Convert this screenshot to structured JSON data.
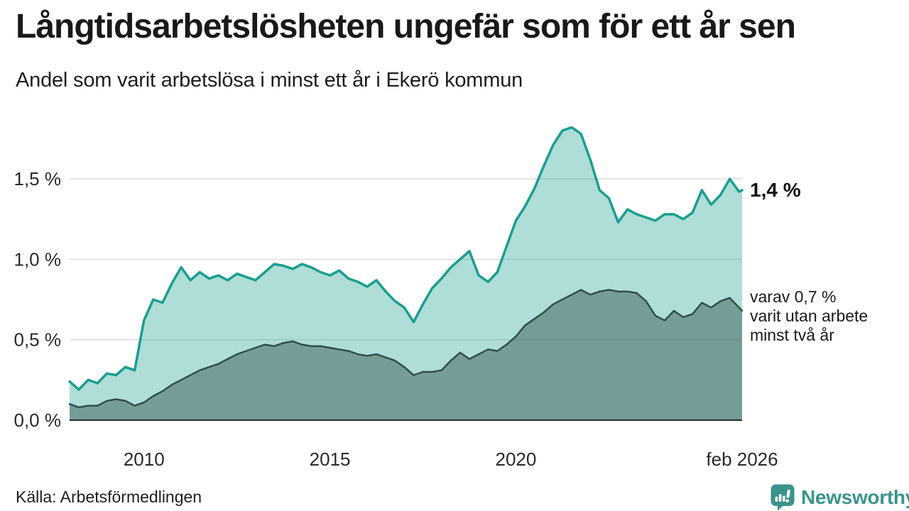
{
  "header": {
    "title": "Långtidsarbetslösheten ungefär som för ett år sen",
    "subtitle": "Andel som varit arbetslösa i minst ett år i Ekerö kommun"
  },
  "footer": {
    "source": "Källa: Arbetsförmedlingen",
    "logo_text": "Newsworthy"
  },
  "colors": {
    "series1_line": "#1b9e8f",
    "series1_fill": "rgba(27,158,143,0.35)",
    "series2_line": "#2e4f4a",
    "series2_fill": "rgba(46,79,74,0.45)",
    "gridline": "#dcdcdc",
    "axis": "#2b2b2b",
    "tick_text": "#2a2a2a",
    "logo": "#3b948b"
  },
  "chart_data": {
    "type": "area",
    "title": "Långtidsarbetslösheten ungefär som för ett år sen",
    "subtitle": "Andel som varit arbetslösa i minst ett år i Ekerö kommun",
    "x_unit": "decimal year, monthly series Jan 2008 – Feb 2026 (values read off chart, quarterly resolution, % of population)",
    "grid": "horizontal",
    "legend_position": "end-of-line labels (right)",
    "xlim": [
      2008,
      2026.083
    ],
    "ylim": [
      0,
      1.9
    ],
    "yticks": [
      {
        "label": "0,0 %",
        "value": 0
      },
      {
        "label": "0,5 %",
        "value": 0.5
      },
      {
        "label": "1,0 %",
        "value": 1.0
      },
      {
        "label": "1,5 %",
        "value": 1.5
      }
    ],
    "xticks": [
      {
        "label": "2010",
        "value": 2010
      },
      {
        "label": "2015",
        "value": 2015
      },
      {
        "label": "2020",
        "value": 2020
      },
      {
        "label": "feb 2026",
        "value": 2026.083
      }
    ],
    "x": [
      2008,
      2008.25,
      2008.5,
      2008.75,
      2009,
      2009.25,
      2009.5,
      2009.75,
      2010,
      2010.25,
      2010.5,
      2010.75,
      2011,
      2011.25,
      2011.5,
      2011.75,
      2012,
      2012.25,
      2012.5,
      2012.75,
      2013,
      2013.25,
      2013.5,
      2013.75,
      2014,
      2014.25,
      2014.5,
      2014.75,
      2015,
      2015.25,
      2015.5,
      2015.75,
      2016,
      2016.25,
      2016.5,
      2016.75,
      2017,
      2017.25,
      2017.5,
      2017.75,
      2018,
      2018.25,
      2018.5,
      2018.75,
      2019,
      2019.25,
      2019.5,
      2019.75,
      2020,
      2020.25,
      2020.5,
      2020.75,
      2021,
      2021.25,
      2021.5,
      2021.75,
      2022,
      2022.25,
      2022.5,
      2022.75,
      2023,
      2023.25,
      2023.5,
      2023.75,
      2024,
      2024.25,
      2024.5,
      2024.75,
      2025,
      2025.25,
      2025.5,
      2025.75,
      2026,
      2026.083
    ],
    "series": [
      {
        "name": "Andel som varit arbetslösa i minst ett år",
        "end_label": "1,4 %",
        "end_value": 1.4,
        "values": [
          0.24,
          0.19,
          0.25,
          0.23,
          0.29,
          0.28,
          0.33,
          0.31,
          0.62,
          0.75,
          0.73,
          0.85,
          0.95,
          0.87,
          0.92,
          0.88,
          0.9,
          0.87,
          0.91,
          0.89,
          0.87,
          0.92,
          0.97,
          0.96,
          0.94,
          0.97,
          0.95,
          0.92,
          0.9,
          0.93,
          0.88,
          0.86,
          0.83,
          0.87,
          0.8,
          0.74,
          0.7,
          0.61,
          0.72,
          0.82,
          0.88,
          0.95,
          1.0,
          1.05,
          0.9,
          0.86,
          0.92,
          1.08,
          1.24,
          1.33,
          1.44,
          1.58,
          1.71,
          1.8,
          1.82,
          1.78,
          1.62,
          1.43,
          1.38,
          1.23,
          1.31,
          1.28,
          1.26,
          1.24,
          1.28,
          1.28,
          1.25,
          1.29,
          1.43,
          1.34,
          1.4,
          1.5,
          1.42,
          1.43
        ]
      },
      {
        "name": "varav varit utan arbete minst två år",
        "end_label": "varav 0,7 %\nvarit utan arbete\nminst två år",
        "end_value": 0.7,
        "values": [
          0.1,
          0.08,
          0.09,
          0.09,
          0.12,
          0.13,
          0.12,
          0.09,
          0.11,
          0.15,
          0.18,
          0.22,
          0.25,
          0.28,
          0.31,
          0.33,
          0.35,
          0.38,
          0.41,
          0.43,
          0.45,
          0.47,
          0.46,
          0.48,
          0.49,
          0.47,
          0.46,
          0.46,
          0.45,
          0.44,
          0.43,
          0.41,
          0.4,
          0.41,
          0.39,
          0.37,
          0.33,
          0.28,
          0.3,
          0.3,
          0.31,
          0.37,
          0.42,
          0.38,
          0.41,
          0.44,
          0.43,
          0.47,
          0.52,
          0.59,
          0.63,
          0.67,
          0.72,
          0.75,
          0.78,
          0.81,
          0.78,
          0.8,
          0.81,
          0.8,
          0.8,
          0.79,
          0.74,
          0.65,
          0.62,
          0.68,
          0.64,
          0.66,
          0.73,
          0.7,
          0.74,
          0.76,
          0.7,
          0.68
        ]
      }
    ]
  }
}
